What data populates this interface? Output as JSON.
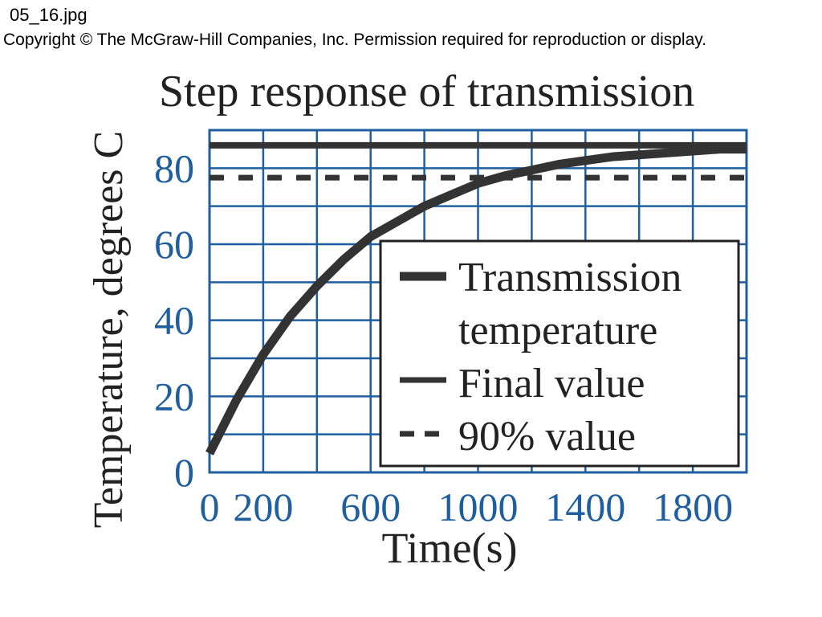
{
  "header": {
    "filename": "05_16.jpg",
    "copyright": "Copyright © The McGraw-Hill Companies, Inc. Permission required for reproduction or display."
  },
  "colors": {
    "axis_blue": "#1f5fa0",
    "series": "#333333",
    "text": "#222222"
  },
  "chart_data": {
    "type": "line",
    "title": "Step response of transmission",
    "xlabel": "Time(s)",
    "ylabel": "Temperature, degrees C",
    "xlim": [
      0,
      2000
    ],
    "ylim": [
      0,
      90
    ],
    "xticks": [
      0,
      200,
      600,
      1000,
      1400,
      1800
    ],
    "xtick_labels": [
      "0",
      "200",
      "600",
      "1000",
      "1400",
      "1800"
    ],
    "yticks": [
      0,
      20,
      40,
      60,
      80
    ],
    "ytick_labels": [
      "0",
      "20",
      "40",
      "60",
      "80"
    ],
    "grid": true,
    "legend_position": "bottom-right",
    "series": [
      {
        "name": "Transmission temperature",
        "style": "thick-solid",
        "x": [
          0,
          100,
          200,
          300,
          400,
          500,
          600,
          700,
          800,
          900,
          1000,
          1100,
          1200,
          1300,
          1400,
          1500,
          1600,
          1700,
          1800,
          1900,
          2000
        ],
        "values": [
          5,
          19,
          31,
          41,
          49,
          56,
          62,
          66,
          70,
          73,
          76,
          78,
          79.5,
          81,
          82,
          83,
          83.5,
          84,
          84.5,
          85,
          85
        ]
      },
      {
        "name": "Final value",
        "style": "solid",
        "x": [
          0,
          2000
        ],
        "values": [
          86,
          86
        ]
      },
      {
        "name": "90% value",
        "style": "dashed",
        "x": [
          0,
          2000
        ],
        "values": [
          77.5,
          77.5
        ]
      }
    ],
    "legend_entries": [
      "Transmission",
      "temperature",
      "Final value",
      "90% value"
    ]
  }
}
